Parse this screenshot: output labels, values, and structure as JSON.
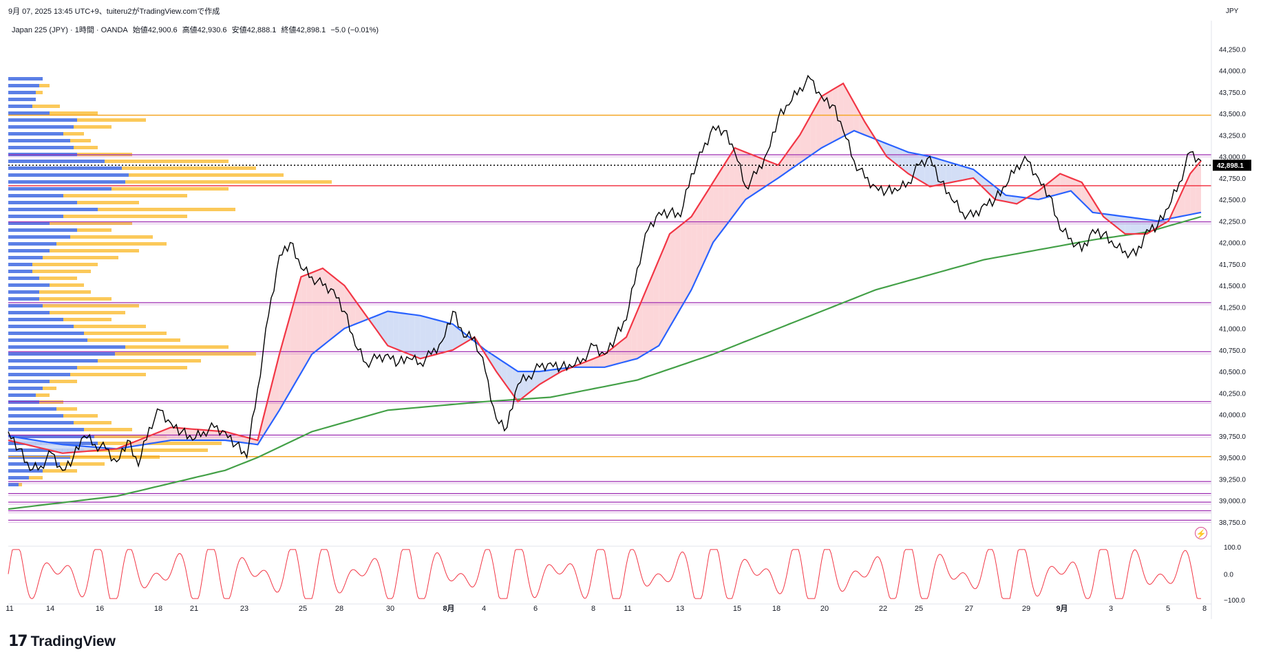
{
  "header": {
    "timestamp": "9月 07, 2025 13:45 UTC+9、tuiteru2がTradingView.comで作成",
    "symbol": "Japan 225 (JPY) · 1時間 · OANDA",
    "open": "始値42,900.6",
    "high": "高値42,930.6",
    "low": "安値42,888.1",
    "close": "終値42,898.1",
    "change": "−5.0 (−0.01%)",
    "currency": "JPY",
    "logo_text": "TradingView"
  },
  "colors": {
    "candle": "#000000",
    "ema_fast": "#f23645",
    "ema_mid": "#2962ff",
    "ema_slow": "#43a047",
    "bull_fill": "#fbcfd2",
    "bear_fill": "#cbd8f5",
    "vp_blue": "#5b7fe6",
    "vp_yellow": "#fbc95a",
    "level_purple": "#9c27b0",
    "level_orange": "#f5a623",
    "level_red": "#f23645",
    "osc": "#f23645"
  },
  "chart_data": {
    "type": "line",
    "title": "Japan 225 (JPY) · 1時間 · OANDA",
    "ylabel": "JPY",
    "ylim": [
      38500,
      44500
    ],
    "y_ticks": [
      "44,250.0",
      "44,000.0",
      "43,750.0",
      "43,500.0",
      "43,250.0",
      "43,000.0",
      "42,750.0",
      "42,500.0",
      "42,250.0",
      "42,000.0",
      "41,750.0",
      "41,500.0",
      "41,250.0",
      "41,000.0",
      "40,750.0",
      "40,500.0",
      "40,250.0",
      "40,000.0",
      "39,750.0",
      "39,500.0",
      "39,250.0",
      "39,000.0",
      "38,750.0"
    ],
    "x_labels": [
      "11",
      "14",
      "16",
      "18",
      "21",
      "23",
      "25",
      "28",
      "30",
      "8月",
      "4",
      "6",
      "8",
      "11",
      "13",
      "15",
      "18",
      "20",
      "22",
      "25",
      "27",
      "29",
      "9月",
      "3",
      "5",
      "8"
    ],
    "last_price_label": "42,898.1",
    "last_price": 42898.1,
    "horizontal_levels": [
      {
        "price": 43480,
        "color": "orange"
      },
      {
        "price": 43020,
        "color": "purple"
      },
      {
        "price": 42660,
        "color": "red"
      },
      {
        "price": 42240,
        "color": "purple"
      },
      {
        "price": 41300,
        "color": "purple"
      },
      {
        "price": 40730,
        "color": "purple"
      },
      {
        "price": 40150,
        "color": "purple"
      },
      {
        "price": 39760,
        "color": "purple"
      },
      {
        "price": 39510,
        "color": "orange"
      },
      {
        "price": 39220,
        "color": "purple"
      },
      {
        "price": 39080,
        "color": "purple"
      },
      {
        "price": 38980,
        "color": "purple"
      },
      {
        "price": 38880,
        "color": "purple"
      },
      {
        "price": 38770,
        "color": "purple"
      }
    ],
    "series": [
      {
        "name": "",
        "kind": "price",
        "x": [
          0,
          2,
          4,
          6,
          8,
          10,
          12,
          14,
          16,
          18,
          20,
          22,
          24,
          26,
          28,
          30,
          32,
          34,
          36,
          38,
          40,
          42,
          44,
          46,
          48,
          50,
          52,
          54,
          56,
          58,
          60,
          62,
          64,
          66,
          68,
          70,
          72,
          74,
          76,
          78,
          80,
          82,
          84,
          86,
          88,
          90,
          92,
          94,
          96,
          98,
          100,
          102,
          104,
          106,
          108,
          110,
          112,
          114,
          116,
          118,
          120,
          122,
          124,
          126,
          128,
          130,
          132,
          134,
          136,
          138,
          140,
          142,
          144,
          146,
          148,
          150,
          152,
          154,
          156,
          158,
          160,
          162,
          164,
          166,
          168,
          170,
          172,
          174,
          176,
          178,
          180,
          182,
          184,
          186,
          188,
          190,
          192,
          194,
          196,
          198,
          200,
          202,
          204,
          206,
          208,
          210,
          212,
          214,
          216,
          218,
          220
        ],
        "values": [
          39800,
          39600,
          39350,
          39400,
          39550,
          39350,
          39500,
          39750,
          39650,
          39600,
          39450,
          39700,
          39400,
          39850,
          40050,
          39900,
          39800,
          39700,
          39800,
          39850,
          39800,
          39650,
          39500,
          40300,
          41150,
          41850,
          42000,
          41700,
          41600,
          41500,
          41450,
          41200,
          40800,
          40600,
          40650,
          40700,
          40600,
          40650,
          40600,
          40700,
          40850,
          41200,
          40900,
          40900,
          40500,
          39950,
          39850,
          40350,
          40450,
          40550,
          40600,
          40550,
          40550,
          40650,
          40800,
          40700,
          40900,
          41100,
          41700,
          42150,
          42350,
          42350,
          42300,
          42800,
          43050,
          43350,
          43300,
          43050,
          42650,
          42800,
          43050,
          43450,
          43600,
          43800,
          43900,
          43700,
          43600,
          43300,
          42950,
          42750,
          42650,
          42600,
          42600,
          42700,
          42900,
          43000,
          42700,
          42500,
          42350,
          42300,
          42450,
          42500,
          42650,
          42900,
          42950,
          42750,
          42550,
          42150,
          42050,
          41900,
          42150,
          42100,
          41950,
          41900,
          41850,
          42150,
          42200,
          42400,
          42700,
          43050,
          42950
        ]
      },
      {
        "name": "",
        "kind": "ema_fast",
        "x": [
          0,
          10,
          20,
          30,
          40,
          46,
          50,
          54,
          58,
          62,
          66,
          70,
          76,
          82,
          86,
          90,
          94,
          98,
          102,
          106,
          110,
          114,
          118,
          122,
          126,
          130,
          134,
          138,
          142,
          146,
          150,
          154,
          158,
          162,
          166,
          170,
          174,
          178,
          182,
          186,
          190,
          194,
          198,
          202,
          206,
          210,
          214,
          218,
          220
        ],
        "values": [
          39700,
          39550,
          39600,
          39850,
          39800,
          39700,
          40700,
          41600,
          41700,
          41500,
          41150,
          40800,
          40650,
          40750,
          40900,
          40500,
          40150,
          40350,
          40500,
          40600,
          40700,
          40900,
          41500,
          42100,
          42300,
          42700,
          43100,
          43000,
          42900,
          43250,
          43700,
          43850,
          43400,
          43000,
          42800,
          42650,
          42700,
          42750,
          42500,
          42450,
          42600,
          42800,
          42700,
          42300,
          42100,
          42100,
          42250,
          42800,
          42950
        ]
      },
      {
        "name": "",
        "kind": "ema_mid",
        "x": [
          0,
          10,
          20,
          30,
          40,
          46,
          50,
          56,
          62,
          66,
          70,
          76,
          82,
          88,
          94,
          98,
          104,
          110,
          116,
          120,
          126,
          130,
          136,
          142,
          150,
          156,
          160,
          166,
          170,
          178,
          184,
          190,
          196,
          200,
          206,
          212,
          216,
          220
        ],
        "values": [
          39750,
          39650,
          39600,
          39700,
          39700,
          39650,
          40050,
          40700,
          41000,
          41100,
          41200,
          41150,
          41050,
          40750,
          40500,
          40500,
          40550,
          40550,
          40650,
          40800,
          41450,
          42000,
          42500,
          42750,
          43100,
          43300,
          43200,
          43050,
          43000,
          42850,
          42550,
          42500,
          42600,
          42350,
          42300,
          42250,
          42300,
          42350
        ]
      },
      {
        "name": "",
        "kind": "ema_slow",
        "x": [
          0,
          20,
          40,
          46,
          56,
          70,
          88,
          100,
          116,
          130,
          146,
          160,
          180,
          200,
          210,
          220
        ],
        "values": [
          38900,
          39050,
          39350,
          39500,
          39800,
          40050,
          40150,
          40200,
          40400,
          40700,
          41100,
          41450,
          41800,
          42030,
          42120,
          42300
        ]
      }
    ],
    "volume_profile": {
      "blue": [
        [
          43900,
          50
        ],
        [
          43820,
          45
        ],
        [
          43740,
          40
        ],
        [
          43660,
          40
        ],
        [
          43580,
          35
        ],
        [
          43500,
          60
        ],
        [
          43420,
          100
        ],
        [
          43340,
          95
        ],
        [
          43260,
          80
        ],
        [
          43180,
          90
        ],
        [
          43100,
          95
        ],
        [
          43020,
          100
        ],
        [
          42940,
          140
        ],
        [
          42860,
          165
        ],
        [
          42780,
          175
        ],
        [
          42700,
          170
        ],
        [
          42620,
          150
        ],
        [
          42540,
          80
        ],
        [
          42460,
          100
        ],
        [
          42380,
          130
        ],
        [
          42300,
          80
        ],
        [
          42220,
          60
        ],
        [
          42140,
          100
        ],
        [
          42060,
          90
        ],
        [
          41980,
          70
        ],
        [
          41900,
          60
        ],
        [
          41820,
          50
        ],
        [
          41740,
          35
        ],
        [
          41660,
          35
        ],
        [
          41580,
          45
        ],
        [
          41500,
          60
        ],
        [
          41420,
          45
        ],
        [
          41340,
          45
        ],
        [
          41260,
          50
        ],
        [
          41180,
          60
        ],
        [
          41100,
          80
        ],
        [
          41020,
          95
        ],
        [
          40940,
          110
        ],
        [
          40860,
          115
        ],
        [
          40780,
          170
        ],
        [
          40700,
          155
        ],
        [
          40620,
          130
        ],
        [
          40540,
          100
        ],
        [
          40460,
          90
        ],
        [
          40380,
          60
        ],
        [
          40300,
          50
        ],
        [
          40220,
          40
        ],
        [
          40140,
          45
        ],
        [
          40060,
          70
        ],
        [
          39980,
          80
        ],
        [
          39900,
          95
        ],
        [
          39820,
          110
        ],
        [
          39740,
          125
        ],
        [
          39660,
          130
        ],
        [
          39580,
          110
        ],
        [
          39500,
          90
        ],
        [
          39420,
          75
        ],
        [
          39340,
          50
        ],
        [
          39260,
          30
        ],
        [
          39180,
          15
        ]
      ],
      "yellow": [
        [
          43900,
          30
        ],
        [
          43820,
          60
        ],
        [
          43740,
          50
        ],
        [
          43660,
          40
        ],
        [
          43580,
          75
        ],
        [
          43500,
          130
        ],
        [
          43420,
          200
        ],
        [
          43340,
          150
        ],
        [
          43260,
          110
        ],
        [
          43180,
          120
        ],
        [
          43100,
          130
        ],
        [
          43020,
          180
        ],
        [
          42940,
          320
        ],
        [
          42860,
          360
        ],
        [
          42780,
          400
        ],
        [
          42700,
          470
        ],
        [
          42620,
          320
        ],
        [
          42540,
          260
        ],
        [
          42460,
          190
        ],
        [
          42380,
          330
        ],
        [
          42300,
          260
        ],
        [
          42220,
          180
        ],
        [
          42140,
          150
        ],
        [
          42060,
          210
        ],
        [
          41980,
          230
        ],
        [
          41900,
          190
        ],
        [
          41820,
          160
        ],
        [
          41740,
          130
        ],
        [
          41660,
          120
        ],
        [
          41580,
          100
        ],
        [
          41500,
          110
        ],
        [
          41420,
          120
        ],
        [
          41340,
          150
        ],
        [
          41260,
          190
        ],
        [
          41180,
          170
        ],
        [
          41100,
          150
        ],
        [
          41020,
          200
        ],
        [
          40940,
          230
        ],
        [
          40860,
          250
        ],
        [
          40780,
          320
        ],
        [
          40700,
          360
        ],
        [
          40620,
          280
        ],
        [
          40540,
          260
        ],
        [
          40460,
          200
        ],
        [
          40380,
          100
        ],
        [
          40300,
          70
        ],
        [
          40220,
          60
        ],
        [
          40140,
          80
        ],
        [
          40060,
          100
        ],
        [
          39980,
          130
        ],
        [
          39900,
          150
        ],
        [
          39820,
          180
        ],
        [
          39740,
          230
        ],
        [
          39660,
          310
        ],
        [
          39580,
          290
        ],
        [
          39500,
          220
        ],
        [
          39420,
          140
        ],
        [
          39340,
          100
        ],
        [
          39260,
          50
        ],
        [
          39180,
          20
        ]
      ]
    },
    "oscillator": {
      "ylim": [
        -100,
        100
      ],
      "ticks": [
        "100.0",
        "0.0",
        "−100.0"
      ]
    }
  }
}
